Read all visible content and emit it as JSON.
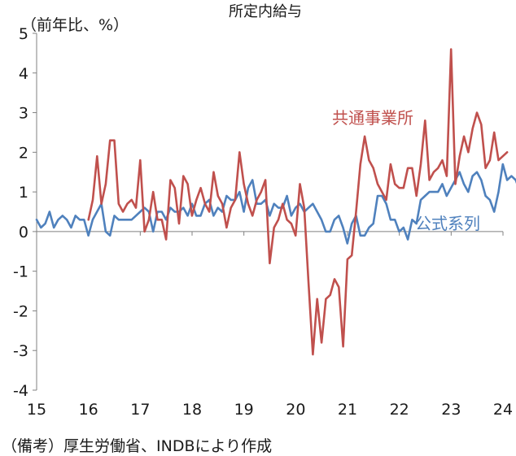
{
  "chart_data": {
    "type": "line",
    "title": "所定内給与",
    "ylabel": "（前年比、%）",
    "xlabel": "",
    "ylim": [
      -4,
      5
    ],
    "yticks": [
      -4,
      -3,
      -2,
      -1,
      0,
      1,
      2,
      3,
      4,
      5
    ],
    "ytick_labels": [
      "-4",
      "-3",
      "-2",
      "-1",
      "0",
      "1",
      "2",
      "3",
      "4",
      "5"
    ],
    "xlim": [
      2015.0,
      2024.0
    ],
    "xtick_labels": [
      "15",
      "16",
      "17",
      "18",
      "19",
      "20",
      "21",
      "22",
      "23",
      "24"
    ],
    "grid": false,
    "colors": {
      "kyotsu": "#c0504d",
      "koshiki": "#4f81bd"
    },
    "series": [
      {
        "name": "共通事業所",
        "color": "#c0504d",
        "start": 2016.0,
        "step": 0.0833,
        "values": [
          0.3,
          0.8,
          1.9,
          0.7,
          1.2,
          2.3,
          2.3,
          0.7,
          0.5,
          0.7,
          0.8,
          0.6,
          1.8,
          0.0,
          0.3,
          1.0,
          0.3,
          0.3,
          -0.2,
          1.3,
          1.1,
          0.2,
          1.4,
          1.2,
          0.4,
          0.8,
          1.1,
          0.7,
          0.5,
          1.5,
          0.9,
          0.7,
          0.1,
          0.6,
          0.8,
          2.0,
          1.2,
          0.7,
          0.4,
          0.8,
          1.0,
          1.3,
          -0.8,
          0.1,
          0.3,
          0.7,
          0.3,
          0.2,
          -0.1,
          1.2,
          0.6,
          -1.3,
          -3.1,
          -1.7,
          -2.8,
          -1.7,
          -1.6,
          -1.2,
          -1.4,
          -2.9,
          -0.7,
          -0.6,
          0.5,
          1.7,
          2.4,
          1.8,
          1.6,
          1.2,
          1.0,
          0.8,
          1.7,
          1.2,
          1.1,
          1.1,
          1.6,
          1.6,
          0.9,
          1.7,
          2.8,
          1.3,
          1.5,
          1.6,
          1.8,
          1.4,
          4.6,
          1.2,
          1.9,
          2.4,
          2.0,
          2.6,
          3.0,
          2.7,
          1.6,
          1.8,
          2.5,
          1.8,
          1.9,
          2.0
        ]
      },
      {
        "name": "公式系列",
        "color": "#4f81bd",
        "start": 2015.0,
        "step": 0.0833,
        "values": [
          0.3,
          0.1,
          0.2,
          0.5,
          0.1,
          0.3,
          0.4,
          0.3,
          0.1,
          0.4,
          0.3,
          0.3,
          -0.1,
          0.3,
          0.5,
          0.7,
          0.0,
          -0.1,
          0.4,
          0.3,
          0.3,
          0.3,
          0.3,
          0.4,
          0.5,
          0.6,
          0.5,
          0.0,
          0.5,
          0.5,
          0.3,
          0.6,
          0.5,
          0.5,
          0.6,
          0.4,
          0.7,
          0.4,
          0.4,
          0.7,
          0.8,
          0.4,
          0.6,
          0.5,
          0.9,
          0.8,
          0.8,
          1.0,
          0.5,
          1.1,
          1.3,
          0.7,
          0.7,
          0.8,
          0.4,
          0.7,
          0.6,
          0.6,
          0.9,
          0.4,
          0.6,
          0.7,
          0.5,
          0.6,
          0.7,
          0.5,
          0.3,
          0.0,
          0.0,
          0.3,
          0.4,
          0.1,
          -0.3,
          0.2,
          0.4,
          -0.1,
          -0.1,
          0.1,
          0.2,
          0.9,
          0.9,
          0.7,
          0.3,
          0.3,
          0.0,
          0.1,
          -0.2,
          0.3,
          0.2,
          0.8,
          0.9,
          1.0,
          1.0,
          1.0,
          1.2,
          0.9,
          1.1,
          1.3,
          1.5,
          1.2,
          1.0,
          1.4,
          1.5,
          1.3,
          0.9,
          0.8,
          0.5,
          1.0,
          1.7,
          1.3,
          1.4,
          1.3,
          1.0,
          1.4,
          1.0,
          1.4,
          1.4
        ]
      }
    ]
  },
  "source_note": "（備考）厚生労働省、INDBにより作成"
}
